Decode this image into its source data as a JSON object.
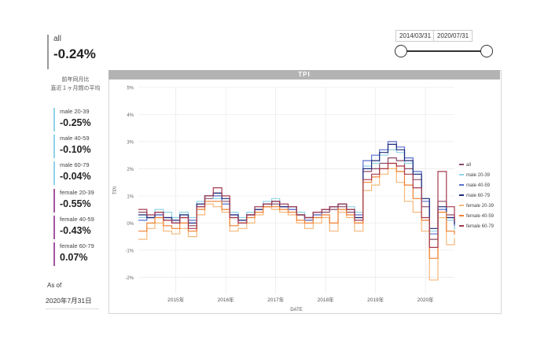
{
  "summary": {
    "label": "all",
    "value": "-0.24%",
    "note_line1": "前年同月比",
    "note_line2": "直近１ヶ月間の平均"
  },
  "kpis_male": [
    {
      "label": "male 20-39",
      "value": "-0.25%"
    },
    {
      "label": "male 40-59",
      "value": "-0.10%"
    },
    {
      "label": "male 60-79",
      "value": "-0.04%"
    }
  ],
  "kpis_female": [
    {
      "label": "female 20-39",
      "value": "-0.55%"
    },
    {
      "label": "female 40-59",
      "value": "-0.43%"
    },
    {
      "label": "female 60-79",
      "value": "0.07%"
    }
  ],
  "as_of": {
    "label": "As of",
    "value": "2020年7月31日"
  },
  "date_range": {
    "start": "2014/03/31",
    "end": "2020/07/31"
  },
  "chart_data": {
    "type": "line",
    "title": "TPI",
    "xlabel": "DATE",
    "ylabel": "TPI",
    "ylim": [
      -2.6,
      5
    ],
    "xlim": [
      2014.25,
      2020.58
    ],
    "yticks": [
      {
        "v": 5,
        "label": "5%"
      },
      {
        "v": 4,
        "label": "4%"
      },
      {
        "v": 3,
        "label": "3%"
      },
      {
        "v": 2,
        "label": "2%"
      },
      {
        "v": 1,
        "label": "1%"
      },
      {
        "v": 0,
        "label": "0%"
      },
      {
        "v": -1,
        "label": "-1%"
      },
      {
        "v": -2,
        "label": "-2%"
      }
    ],
    "xticks": [
      {
        "v": 2015,
        "label": "2015年"
      },
      {
        "v": 2016,
        "label": "2016年"
      },
      {
        "v": 2017,
        "label": "2017年"
      },
      {
        "v": 2018,
        "label": "2018年"
      },
      {
        "v": 2019,
        "label": "2019年"
      },
      {
        "v": 2020,
        "label": "2020年"
      }
    ],
    "legend_position": "right",
    "series": [
      {
        "name": "all",
        "color": "#8b4b6a",
        "x": [
          2014.25,
          2014.42,
          2014.58,
          2014.75,
          2014.92,
          2015.08,
          2015.25,
          2015.42,
          2015.58,
          2015.75,
          2015.92,
          2016.08,
          2016.25,
          2016.42,
          2016.58,
          2016.75,
          2016.92,
          2017.08,
          2017.25,
          2017.42,
          2017.58,
          2017.75,
          2017.92,
          2018.08,
          2018.25,
          2018.42,
          2018.58,
          2018.75,
          2018.92,
          2019.08,
          2019.25,
          2019.42,
          2019.58,
          2019.75,
          2019.92,
          2020.08,
          2020.25,
          2020.42,
          2020.58
        ],
        "y": [
          0.4,
          0.2,
          0.3,
          0.1,
          0.0,
          0.2,
          -0.1,
          0.6,
          0.9,
          1.1,
          0.8,
          0.2,
          0.0,
          0.3,
          0.5,
          0.6,
          0.7,
          0.6,
          0.5,
          0.3,
          0.1,
          0.3,
          0.4,
          0.5,
          0.6,
          0.4,
          0.2,
          1.9,
          2.0,
          2.2,
          2.4,
          2.3,
          2.0,
          1.6,
          0.6,
          -0.6,
          0.8,
          0.3,
          -0.2
        ]
      },
      {
        "name": "male 20-39",
        "color": "#8fd3e6",
        "x": [
          2014.25,
          2014.42,
          2014.58,
          2014.75,
          2014.92,
          2015.08,
          2015.25,
          2015.42,
          2015.58,
          2015.75,
          2015.92,
          2016.08,
          2016.25,
          2016.42,
          2016.58,
          2016.75,
          2016.92,
          2017.08,
          2017.25,
          2017.42,
          2017.58,
          2017.75,
          2017.92,
          2018.08,
          2018.25,
          2018.42,
          2018.58,
          2018.75,
          2018.92,
          2019.08,
          2019.25,
          2019.42,
          2019.58,
          2019.75,
          2019.92,
          2020.08,
          2020.25,
          2020.42,
          2020.58
        ],
        "y": [
          0.2,
          0.3,
          0.5,
          0.4,
          0.2,
          0.4,
          0.2,
          0.8,
          1.0,
          0.9,
          0.7,
          0.4,
          0.2,
          0.4,
          0.6,
          0.8,
          0.9,
          0.7,
          0.6,
          0.4,
          0.2,
          0.4,
          0.5,
          0.6,
          0.7,
          0.6,
          0.4,
          2.1,
          2.2,
          2.5,
          2.7,
          2.6,
          2.2,
          1.8,
          0.9,
          -0.3,
          0.6,
          0.1,
          -0.25
        ]
      },
      {
        "name": "male 40-59",
        "color": "#5a6fd1",
        "x": [
          2014.25,
          2014.42,
          2014.58,
          2014.75,
          2014.92,
          2015.08,
          2015.25,
          2015.42,
          2015.58,
          2015.75,
          2015.92,
          2016.08,
          2016.25,
          2016.42,
          2016.58,
          2016.75,
          2016.92,
          2017.08,
          2017.25,
          2017.42,
          2017.58,
          2017.75,
          2017.92,
          2018.08,
          2018.25,
          2018.42,
          2018.58,
          2018.75,
          2018.92,
          2019.08,
          2019.25,
          2019.42,
          2019.58,
          2019.75,
          2019.92,
          2020.08,
          2020.25,
          2020.42,
          2020.58
        ],
        "y": [
          0.1,
          0.2,
          0.3,
          0.2,
          0.0,
          0.3,
          0.1,
          0.7,
          1.0,
          1.0,
          0.7,
          0.3,
          0.1,
          0.3,
          0.5,
          0.7,
          0.8,
          0.6,
          0.5,
          0.3,
          0.1,
          0.3,
          0.5,
          0.6,
          0.7,
          0.5,
          0.3,
          2.3,
          2.5,
          2.7,
          3.0,
          2.8,
          2.4,
          1.9,
          0.8,
          -0.4,
          0.5,
          0.2,
          -0.1
        ]
      },
      {
        "name": "male 60-79",
        "color": "#1f2a78",
        "x": [
          2014.25,
          2014.42,
          2014.58,
          2014.75,
          2014.92,
          2015.08,
          2015.25,
          2015.42,
          2015.58,
          2015.75,
          2015.92,
          2016.08,
          2016.25,
          2016.42,
          2016.58,
          2016.75,
          2016.92,
          2017.08,
          2017.25,
          2017.42,
          2017.58,
          2017.75,
          2017.92,
          2018.08,
          2018.25,
          2018.42,
          2018.58,
          2018.75,
          2018.92,
          2019.08,
          2019.25,
          2019.42,
          2019.58,
          2019.75,
          2019.92,
          2020.08,
          2020.25,
          2020.42,
          2020.58
        ],
        "y": [
          0.3,
          0.2,
          0.4,
          0.2,
          0.1,
          0.3,
          0.0,
          0.7,
          1.0,
          1.1,
          0.9,
          0.3,
          0.1,
          0.3,
          0.5,
          0.7,
          0.8,
          0.6,
          0.6,
          0.3,
          0.2,
          0.4,
          0.5,
          0.6,
          0.7,
          0.5,
          0.2,
          2.0,
          2.3,
          2.6,
          2.9,
          2.7,
          2.3,
          1.8,
          0.9,
          -0.2,
          0.6,
          0.2,
          -0.04
        ]
      },
      {
        "name": "female 20-39",
        "color": "#f5b87a",
        "x": [
          2014.25,
          2014.42,
          2014.58,
          2014.75,
          2014.92,
          2015.08,
          2015.25,
          2015.42,
          2015.58,
          2015.75,
          2015.92,
          2016.08,
          2016.25,
          2016.42,
          2016.58,
          2016.75,
          2016.92,
          2017.08,
          2017.25,
          2017.42,
          2017.58,
          2017.75,
          2017.92,
          2018.08,
          2018.25,
          2018.42,
          2018.58,
          2018.75,
          2018.92,
          2019.08,
          2019.25,
          2019.42,
          2019.58,
          2019.75,
          2019.92,
          2020.08,
          2020.25,
          2020.42,
          2020.58
        ],
        "y": [
          -0.6,
          -0.2,
          0.0,
          -0.3,
          -0.4,
          -0.2,
          -0.5,
          0.3,
          0.7,
          0.6,
          0.4,
          -0.3,
          -0.2,
          0.0,
          0.3,
          0.6,
          0.5,
          0.4,
          0.3,
          0.0,
          -0.2,
          0.0,
          0.2,
          -0.3,
          0.4,
          0.2,
          -0.3,
          1.2,
          1.4,
          1.8,
          2.0,
          1.5,
          0.8,
          0.4,
          -0.3,
          -2.1,
          0.2,
          -0.8,
          -0.55
        ]
      },
      {
        "name": "female 40-59",
        "color": "#f08030",
        "x": [
          2014.25,
          2014.42,
          2014.58,
          2014.75,
          2014.92,
          2015.08,
          2015.25,
          2015.42,
          2015.58,
          2015.75,
          2015.92,
          2016.08,
          2016.25,
          2016.42,
          2016.58,
          2016.75,
          2016.92,
          2017.08,
          2017.25,
          2017.42,
          2017.58,
          2017.75,
          2017.92,
          2018.08,
          2018.25,
          2018.42,
          2018.58,
          2018.75,
          2018.92,
          2019.08,
          2019.25,
          2019.42,
          2019.58,
          2019.75,
          2019.92,
          2020.08,
          2020.25,
          2020.42,
          2020.58
        ],
        "y": [
          -0.3,
          0.0,
          0.2,
          -0.1,
          -0.2,
          0.0,
          -0.3,
          0.5,
          0.8,
          0.8,
          0.5,
          -0.1,
          0.0,
          0.2,
          0.4,
          0.6,
          0.6,
          0.5,
          0.4,
          0.1,
          0.0,
          0.2,
          0.3,
          0.0,
          0.5,
          0.3,
          0.0,
          1.5,
          1.7,
          2.0,
          2.2,
          1.9,
          1.4,
          0.9,
          0.1,
          -1.3,
          0.4,
          -0.3,
          -0.43
        ]
      },
      {
        "name": "female 60-79",
        "color": "#a63a4e",
        "x": [
          2014.25,
          2014.42,
          2014.58,
          2014.75,
          2014.92,
          2015.08,
          2015.25,
          2015.42,
          2015.58,
          2015.75,
          2015.92,
          2016.08,
          2016.25,
          2016.42,
          2016.58,
          2016.75,
          2016.92,
          2017.08,
          2017.25,
          2017.42,
          2017.58,
          2017.75,
          2017.92,
          2018.08,
          2018.25,
          2018.42,
          2018.58,
          2018.75,
          2018.92,
          2019.08,
          2019.25,
          2019.42,
          2019.58,
          2019.75,
          2019.92,
          2020.08,
          2020.25,
          2020.42,
          2020.58
        ],
        "y": [
          0.5,
          0.3,
          0.4,
          0.1,
          0.0,
          0.2,
          -0.2,
          0.6,
          1.0,
          1.3,
          1.0,
          0.2,
          0.0,
          0.3,
          0.6,
          0.7,
          0.8,
          0.7,
          0.6,
          0.3,
          0.2,
          0.4,
          0.5,
          0.6,
          0.7,
          0.5,
          0.1,
          1.6,
          1.8,
          2.0,
          2.2,
          2.1,
          1.8,
          1.3,
          0.2,
          -0.9,
          1.9,
          0.6,
          0.07
        ]
      }
    ]
  }
}
